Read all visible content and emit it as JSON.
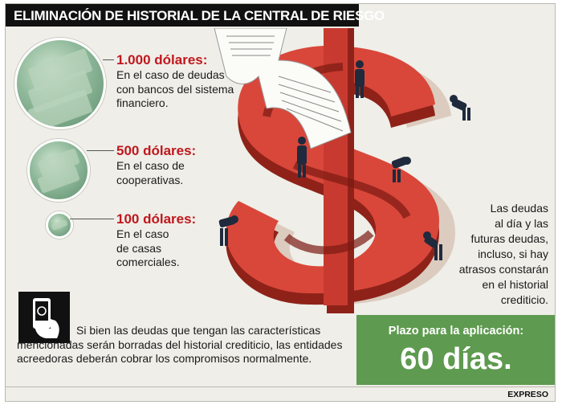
{
  "header": {
    "title": "ELIMINACIÓN DE HISTORIAL DE LA CENTRAL DE RIESGO"
  },
  "tiers": [
    {
      "amount": "1.000 dólares:",
      "lines": [
        "En el caso de deudas",
        "con bancos del sistema",
        "financiero."
      ]
    },
    {
      "amount": "500 dólares:",
      "lines": [
        "En el caso de",
        "cooperativas."
      ]
    },
    {
      "amount": "100 dólares:",
      "lines": [
        "En el caso",
        "de casas",
        "comerciales."
      ]
    }
  ],
  "side_note": {
    "lines": [
      "Las deudas",
      "al día y las",
      "futuras deudas,",
      "incluso, si hay",
      "atrasos constarán",
      "en el historial",
      "crediticio."
    ]
  },
  "footer_note": {
    "text": "Si bien las deudas que tengan las características mencionadas serán borradas del historial crediticio, las entidades acreedoras deberán cobrar los compromisos normalmente."
  },
  "deadline": {
    "label": "Plazo para la aplicación:",
    "value": "60 días."
  },
  "source": "EXPRESO",
  "colors": {
    "title_bg": "#111111",
    "amount_red": "#c0171d",
    "green_box": "#5e9a4f",
    "dollar_red": "#d9473a",
    "background": "#efeee8"
  },
  "icons": [
    "money-bundle-icon",
    "hand-phone-icon"
  ]
}
